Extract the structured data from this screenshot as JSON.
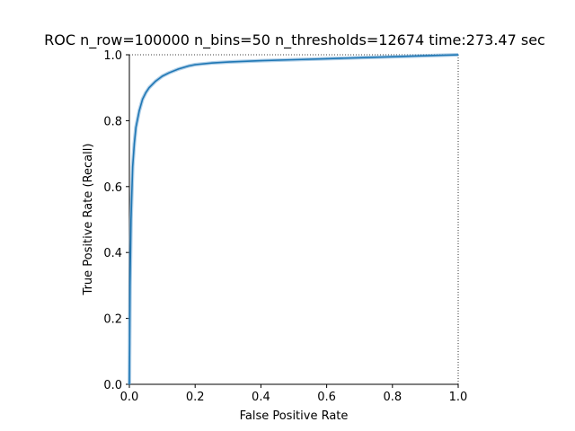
{
  "chart_data": {
    "type": "line",
    "title": "ROC n_row=100000 n_bins=50 n_thresholds=12674 time:273.47 sec",
    "xlabel": "False Positive Rate",
    "ylabel": "True Positive Rate (Recall)",
    "xlim": [
      0.0,
      1.0
    ],
    "ylim": [
      0.0,
      1.0
    ],
    "xticks": [
      "0.0",
      "0.2",
      "0.4",
      "0.6",
      "0.8",
      "1.0"
    ],
    "yticks": [
      "0.0",
      "0.2",
      "0.4",
      "0.6",
      "0.8",
      "1.0"
    ],
    "grid": false,
    "colors": {
      "line": "#1f77b4",
      "band": "#6fa8d6"
    },
    "series": [
      {
        "x": [
          0.0,
          0.002,
          0.005,
          0.01,
          0.015,
          0.02,
          0.03,
          0.04,
          0.05,
          0.06,
          0.08,
          0.1,
          0.12,
          0.15,
          0.18,
          0.2,
          0.25,
          0.3,
          0.4,
          0.5,
          0.6,
          0.7,
          0.8,
          0.9,
          1.0
        ],
        "y": [
          0.0,
          0.3,
          0.5,
          0.66,
          0.73,
          0.78,
          0.83,
          0.865,
          0.885,
          0.9,
          0.92,
          0.935,
          0.945,
          0.957,
          0.966,
          0.97,
          0.975,
          0.978,
          0.982,
          0.985,
          0.988,
          0.991,
          0.994,
          0.997,
          1.0
        ]
      }
    ]
  }
}
